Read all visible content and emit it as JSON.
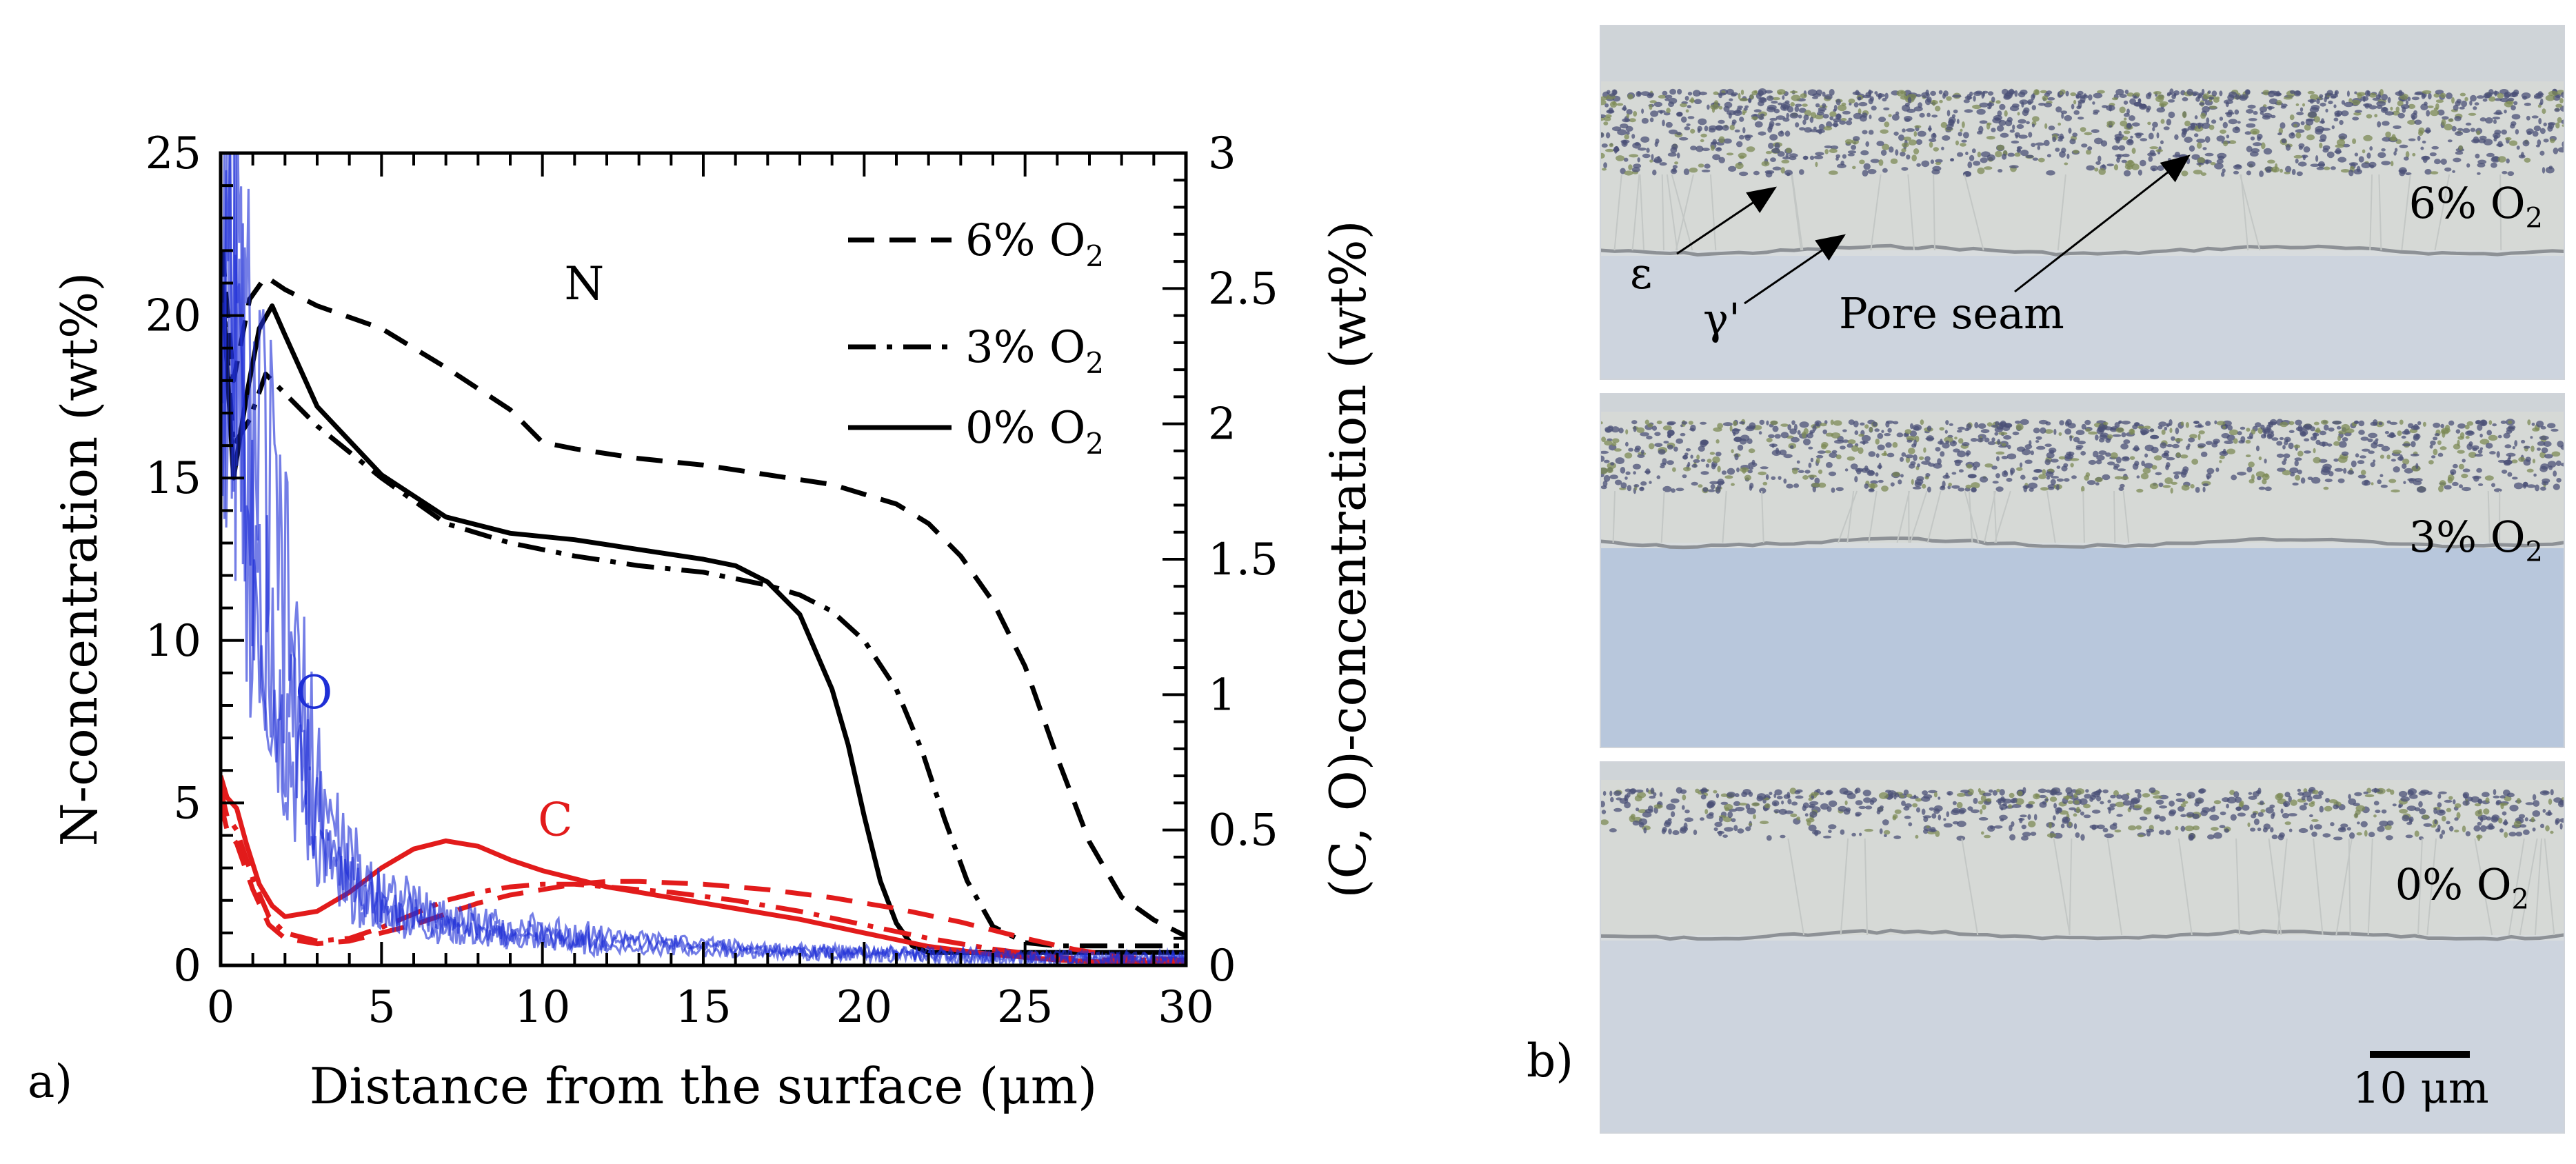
{
  "panel_a": {
    "letter": "a)",
    "chart_data": {
      "type": "line",
      "title": "",
      "xlabel": "Distance from the surface (μm)",
      "ylabel_left": "N-concentration (wt%)",
      "ylabel_right": "(C, O)-concentration (wt%)",
      "xlim": [
        0,
        30
      ],
      "ylim_left": [
        0,
        25
      ],
      "ylim_right": [
        0,
        3
      ],
      "x_ticks": [
        "0",
        "5",
        "10",
        "15",
        "20",
        "25",
        "30"
      ],
      "y_left_ticks": [
        "0",
        "5",
        "10",
        "15",
        "20",
        "25"
      ],
      "y_right_ticks": [
        "0",
        "0.5",
        "1",
        "1.5",
        "2",
        "2.5",
        "3"
      ],
      "grid": false,
      "legend": {
        "position": "top-right",
        "entries": [
          {
            "name": "6% O",
            "sub": "2",
            "style": "dashed"
          },
          {
            "name": "3% O",
            "sub": "2",
            "style": "dashdot"
          },
          {
            "name": "0% O",
            "sub": "2",
            "style": "solid"
          }
        ]
      },
      "annotations": [
        {
          "text": "N",
          "x": 11.3,
          "y": 20.5,
          "axis": "left",
          "color": "#000000"
        },
        {
          "text": "O",
          "x": 2.9,
          "y": 0.95,
          "axis": "right",
          "color": "#1f2fd6"
        },
        {
          "text": "C",
          "x": 10.4,
          "y": 0.48,
          "axis": "right",
          "color": "#e21b1b"
        }
      ],
      "series": [
        {
          "name": "N 6% O2",
          "element": "N",
          "axis": "left",
          "style": "dashed",
          "color": "#000000",
          "x": [
            0.05,
            0.4,
            0.9,
            1.4,
            2,
            3,
            5,
            7,
            9,
            10,
            11,
            13,
            15,
            17,
            19,
            21,
            22,
            23,
            24,
            25,
            26,
            27,
            28,
            29,
            30
          ],
          "y": [
            22,
            18,
            20.5,
            21.2,
            20.8,
            20.3,
            19.6,
            18.4,
            17.1,
            16.1,
            15.9,
            15.6,
            15.4,
            15.1,
            14.8,
            14.2,
            13.6,
            12.6,
            11.2,
            9.2,
            6.4,
            3.8,
            2.1,
            1.4,
            0.9
          ]
        },
        {
          "name": "N 3% O2",
          "element": "N",
          "axis": "left",
          "style": "dashdot",
          "color": "#000000",
          "x": [
            0.05,
            0.4,
            0.9,
            1.4,
            2,
            3,
            5,
            7,
            9,
            11,
            13,
            15,
            17,
            18,
            19,
            20,
            21,
            21.8,
            22.5,
            23.2,
            24,
            25,
            26,
            28,
            30
          ],
          "y": [
            21,
            16,
            16.8,
            18.2,
            17.6,
            16.6,
            15,
            13.6,
            13.0,
            12.6,
            12.3,
            12.1,
            11.7,
            11.4,
            10.9,
            10.0,
            8.5,
            6.6,
            4.5,
            2.6,
            1.2,
            0.7,
            0.6,
            0.6,
            0.6
          ]
        },
        {
          "name": "N 0% O2",
          "element": "N",
          "axis": "left",
          "style": "solid",
          "color": "#000000",
          "x": [
            0.05,
            0.4,
            0.8,
            1.2,
            1.6,
            2,
            3,
            5,
            7,
            9,
            11,
            13,
            15,
            16,
            17,
            18,
            19,
            19.5,
            20,
            20.5,
            21,
            21.5,
            22,
            24,
            26,
            28,
            30
          ],
          "y": [
            21,
            15,
            17.5,
            19.6,
            20.3,
            19.4,
            17.2,
            15.1,
            13.8,
            13.3,
            13.1,
            12.8,
            12.5,
            12.3,
            11.8,
            10.8,
            8.5,
            6.8,
            4.6,
            2.6,
            1.3,
            0.6,
            0.4,
            0.4,
            0.4,
            0.4,
            0.4
          ]
        },
        {
          "name": "C 0% O2",
          "element": "C",
          "axis": "right",
          "style": "solid",
          "color": "#e21b1b",
          "x": [
            0,
            0.2,
            0.5,
            0.8,
            1.2,
            1.6,
            2,
            3,
            4,
            5,
            6,
            7,
            8,
            9,
            10,
            11,
            12,
            14,
            16,
            18,
            20,
            22,
            24,
            26,
            28,
            30
          ],
          "y": [
            0.7,
            0.62,
            0.58,
            0.45,
            0.3,
            0.22,
            0.18,
            0.2,
            0.27,
            0.36,
            0.43,
            0.46,
            0.44,
            0.39,
            0.35,
            0.32,
            0.29,
            0.25,
            0.21,
            0.17,
            0.12,
            0.07,
            0.04,
            0.02,
            0.01,
            0.01
          ]
        },
        {
          "name": "C 3% O2",
          "element": "C",
          "axis": "right",
          "style": "dashdot",
          "color": "#e21b1b",
          "x": [
            0,
            0.2,
            0.5,
            1,
            1.5,
            2,
            3,
            4,
            5,
            6,
            7,
            8,
            9,
            10,
            11,
            12,
            14,
            16,
            18,
            20,
            22,
            24,
            26,
            27.5,
            30
          ],
          "y": [
            0.65,
            0.55,
            0.5,
            0.32,
            0.18,
            0.12,
            0.09,
            0.1,
            0.14,
            0.19,
            0.24,
            0.27,
            0.29,
            0.3,
            0.3,
            0.29,
            0.27,
            0.24,
            0.2,
            0.15,
            0.1,
            0.06,
            0.03,
            0.02,
            0.02
          ]
        },
        {
          "name": "C 6% O2",
          "element": "C",
          "axis": "right",
          "style": "dashed",
          "color": "#e21b1b",
          "x": [
            0,
            0.2,
            0.5,
            1,
            1.5,
            2,
            3,
            4,
            5,
            6,
            7,
            8,
            9,
            10,
            11,
            12,
            13,
            15,
            17,
            19,
            21,
            23,
            25,
            26.5,
            28,
            30
          ],
          "y": [
            0.6,
            0.5,
            0.45,
            0.28,
            0.15,
            0.1,
            0.08,
            0.09,
            0.12,
            0.15,
            0.19,
            0.23,
            0.26,
            0.28,
            0.3,
            0.31,
            0.31,
            0.3,
            0.28,
            0.25,
            0.21,
            0.16,
            0.1,
            0.06,
            0.03,
            0.02
          ]
        },
        {
          "name": "O 6% O2",
          "element": "O",
          "axis": "right",
          "style": "noisy",
          "color": "#1f2fd6",
          "x": [
            0,
            0.2,
            0.4,
            0.7,
            1,
            1.3,
            1.6,
            2,
            2.5,
            3,
            3.5,
            4,
            5,
            6,
            7,
            8,
            9,
            10,
            11,
            12,
            13,
            14,
            15,
            17,
            20,
            23,
            26,
            30
          ],
          "y": [
            2.6,
            2.9,
            2.5,
            2.2,
            2.0,
            1.8,
            1.6,
            1.3,
            0.95,
            0.7,
            0.5,
            0.38,
            0.28,
            0.22,
            0.18,
            0.16,
            0.14,
            0.13,
            0.12,
            0.11,
            0.1,
            0.09,
            0.08,
            0.06,
            0.05,
            0.04,
            0.03,
            0.03
          ]
        },
        {
          "name": "O 3% O2",
          "element": "O",
          "axis": "right",
          "style": "noisy",
          "color": "#1f2fd6",
          "x": [
            0,
            0.2,
            0.4,
            0.7,
            1,
            1.3,
            1.6,
            2,
            2.5,
            3,
            3.5,
            4,
            5,
            6,
            7,
            8,
            9,
            10,
            12,
            14,
            16,
            20,
            25,
            30
          ],
          "y": [
            2.4,
            2.7,
            2.3,
            2.0,
            1.8,
            1.55,
            1.3,
            1.0,
            0.75,
            0.55,
            0.42,
            0.32,
            0.24,
            0.19,
            0.16,
            0.14,
            0.12,
            0.11,
            0.09,
            0.08,
            0.06,
            0.05,
            0.03,
            0.02
          ]
        },
        {
          "name": "O 0% O2",
          "element": "O",
          "axis": "right",
          "style": "noisy",
          "color": "#1f2fd6",
          "x": [
            0,
            0.2,
            0.4,
            0.7,
            1,
            1.3,
            1.6,
            2,
            2.5,
            3,
            3.5,
            4,
            5,
            6,
            7,
            8,
            9,
            10,
            12,
            14,
            16,
            20,
            25,
            30
          ],
          "y": [
            2.2,
            2.5,
            2.1,
            1.8,
            1.55,
            1.3,
            1.05,
            0.85,
            0.62,
            0.46,
            0.35,
            0.27,
            0.2,
            0.16,
            0.13,
            0.11,
            0.1,
            0.09,
            0.07,
            0.06,
            0.05,
            0.04,
            0.02,
            0.02
          ]
        }
      ]
    }
  },
  "panel_b": {
    "letter": "b)",
    "micrographs": [
      {
        "label_main": "6% O",
        "label_sub": "2"
      },
      {
        "label_main": "3% O",
        "label_sub": "2"
      },
      {
        "label_main": "0% O",
        "label_sub": "2"
      }
    ],
    "annotations": {
      "epsilon": "ε",
      "gamma_prime": "γ'",
      "pore_seam": "Pore seam"
    },
    "scale_bar": "10 μm"
  }
}
